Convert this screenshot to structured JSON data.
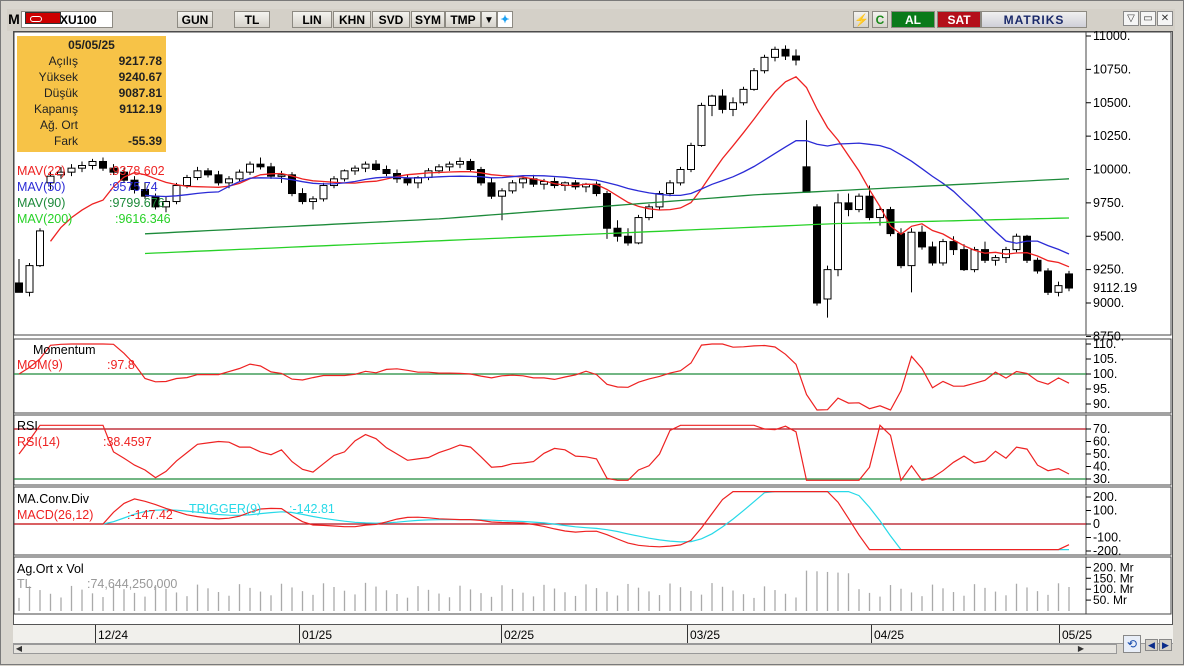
{
  "toolbar": {
    "logo": "M",
    "symbol": "XU100",
    "buttons": [
      "GUN",
      "TL",
      "LIN",
      "KHN",
      "SVD",
      "SYM",
      "TMP"
    ],
    "buy_label": "AL",
    "sell_label": "SAT",
    "brand": "MATRIKS"
  },
  "colors": {
    "buy": "#0a7a1a",
    "sell": "#b40f1a",
    "info_bg": "#f7c347",
    "ma22": "#ee2222",
    "ma50": "#2b2bd6",
    "ma90": "#1d8a3a",
    "ma200": "#27d127",
    "trigger": "#27d9e8"
  },
  "info": {
    "date": "05/05/25",
    "rows": [
      {
        "label": "Açılış",
        "value": "9217.78"
      },
      {
        "label": "Yüksek",
        "value": "9240.67"
      },
      {
        "label": "Düşük",
        "value": "9087.81"
      },
      {
        "label": "Kapanış",
        "value": "9112.19"
      },
      {
        "label": "Ağ. Ort",
        "value": ""
      },
      {
        "label": "Fark",
        "value": "-55.39"
      }
    ]
  },
  "legend": {
    "ma22": {
      "name": "MAV(22)",
      "value": ":9378.602"
    },
    "ma50": {
      "name": "MAV(50)",
      "value": ":9575.74"
    },
    "ma90": {
      "name": "MAV(90)",
      "value": ":9799.676"
    },
    "ma200": {
      "name": "MAV(200)",
      "value": ":9616.346"
    }
  },
  "panes": {
    "momentum": {
      "title": "Momentum",
      "name": "MOM(9)",
      "value": ":97.8"
    },
    "rsi": {
      "title": "RSI",
      "name": "RSI(14)",
      "value": ":38.4597"
    },
    "macd": {
      "title": "MA.Conv.Div",
      "name": "MACD(26,12)",
      "value": ":-147.42",
      "trigger_name": "TRIGGER(9)",
      "trigger_value": ":-142.81"
    },
    "volume": {
      "title": "Ag.Ort x Vol",
      "unit": "TL",
      "value": ":74,644,250,000"
    }
  },
  "axes": {
    "price_ticks": [
      "11000.",
      "10750.",
      "10500.",
      "10250.",
      "10000.",
      "9750.",
      "9500.",
      "9250.",
      "9000.",
      "8750."
    ],
    "last_price": "9112.19",
    "mom_ticks": [
      "110.",
      "105.",
      "100.",
      "95.",
      "90."
    ],
    "rsi_ticks": [
      "70.",
      "60.",
      "50.",
      "40.",
      "30."
    ],
    "macd_ticks": [
      "200.",
      "100.",
      "0",
      "-100.",
      "-200."
    ],
    "vol_ticks": [
      "200. Mr",
      "150. Mr",
      "100. Mr",
      "50. Mr"
    ]
  },
  "dates": [
    "12/24",
    "01/25",
    "02/25",
    "03/25",
    "04/25",
    "05/25"
  ],
  "chart_data": {
    "type": "candlestick",
    "symbol": "XU100",
    "ylim": [
      8750,
      11000
    ],
    "candles_approx": [
      [
        9150,
        9330,
        9100,
        9080
      ],
      [
        9080,
        9300,
        9050,
        9280
      ],
      [
        9280,
        9560,
        9270,
        9540
      ],
      [
        9900,
        9980,
        9850,
        9950
      ],
      [
        9960,
        10020,
        9930,
        9980
      ],
      [
        9980,
        10040,
        9950,
        10010
      ],
      [
        10010,
        10060,
        9980,
        10030
      ],
      [
        10030,
        10080,
        10000,
        10060
      ],
      [
        10060,
        10090,
        9990,
        10010
      ],
      [
        10010,
        10040,
        9960,
        9980
      ],
      [
        9980,
        10010,
        9900,
        9920
      ],
      [
        9920,
        9950,
        9820,
        9850
      ],
      [
        9850,
        9900,
        9780,
        9800
      ],
      [
        9800,
        9820,
        9700,
        9720
      ],
      [
        9720,
        9800,
        9680,
        9760
      ],
      [
        9760,
        9900,
        9740,
        9880
      ],
      [
        9880,
        9960,
        9860,
        9940
      ],
      [
        9940,
        10020,
        9920,
        9990
      ],
      [
        9990,
        10010,
        9940,
        9960
      ],
      [
        9960,
        9990,
        9880,
        9900
      ],
      [
        9900,
        9950,
        9860,
        9930
      ],
      [
        9930,
        10000,
        9910,
        9980
      ],
      [
        9980,
        10060,
        9960,
        10040
      ],
      [
        10040,
        10090,
        10000,
        10020
      ],
      [
        10020,
        10050,
        9930,
        9950
      ],
      [
        9950,
        9990,
        9900,
        9960
      ],
      [
        9960,
        9980,
        9800,
        9820
      ],
      [
        9820,
        9860,
        9740,
        9760
      ],
      [
        9760,
        9800,
        9700,
        9780
      ],
      [
        9780,
        9900,
        9760,
        9880
      ],
      [
        9880,
        9950,
        9860,
        9930
      ],
      [
        9930,
        10000,
        9910,
        9990
      ],
      [
        9990,
        10030,
        9960,
        10010
      ],
      [
        10010,
        10060,
        9980,
        10040
      ],
      [
        10040,
        10070,
        9990,
        10000
      ],
      [
        10000,
        10030,
        9950,
        9970
      ],
      [
        9970,
        10000,
        9900,
        9930
      ],
      [
        9930,
        9960,
        9880,
        9900
      ],
      [
        9900,
        9950,
        9860,
        9940
      ],
      [
        9940,
        10010,
        9920,
        9990
      ],
      [
        9990,
        10040,
        9970,
        10020
      ],
      [
        10020,
        10060,
        9990,
        10040
      ],
      [
        10040,
        10090,
        10010,
        10060
      ],
      [
        10060,
        10080,
        9980,
        10000
      ],
      [
        10000,
        10020,
        9880,
        9900
      ],
      [
        9900,
        9940,
        9780,
        9800
      ],
      [
        9800,
        9860,
        9620,
        9840
      ],
      [
        9840,
        9920,
        9820,
        9900
      ],
      [
        9900,
        9950,
        9860,
        9930
      ],
      [
        9930,
        9960,
        9870,
        9890
      ],
      [
        9890,
        9930,
        9850,
        9910
      ],
      [
        9910,
        9940,
        9860,
        9880
      ],
      [
        9880,
        9910,
        9840,
        9900
      ],
      [
        9900,
        9920,
        9850,
        9870
      ],
      [
        9870,
        9900,
        9830,
        9890
      ],
      [
        9890,
        9910,
        9800,
        9820
      ],
      [
        9820,
        9840,
        9480,
        9560
      ],
      [
        9560,
        9620,
        9460,
        9500
      ],
      [
        9500,
        9560,
        9430,
        9450
      ],
      [
        9450,
        9660,
        9440,
        9640
      ],
      [
        9640,
        9740,
        9620,
        9720
      ],
      [
        9720,
        9840,
        9700,
        9820
      ],
      [
        9820,
        9920,
        9800,
        9900
      ],
      [
        9900,
        10020,
        9880,
        10000
      ],
      [
        10000,
        10200,
        9980,
        10180
      ],
      [
        10180,
        10500,
        10170,
        10480
      ],
      [
        10480,
        10560,
        10400,
        10550
      ],
      [
        10550,
        10600,
        10420,
        10450
      ],
      [
        10450,
        10540,
        10400,
        10500
      ],
      [
        10500,
        10620,
        10480,
        10600
      ],
      [
        10600,
        10760,
        10590,
        10740
      ],
      [
        10740,
        10860,
        10720,
        10840
      ],
      [
        10840,
        10920,
        10810,
        10900
      ],
      [
        10900,
        10930,
        10820,
        10850
      ],
      [
        10850,
        10900,
        10780,
        10820
      ],
      [
        10020,
        10370,
        9830,
        9830
      ],
      [
        9720,
        9740,
        8980,
        9000
      ],
      [
        9030,
        9280,
        8890,
        9250
      ],
      [
        9250,
        9820,
        9200,
        9750
      ],
      [
        9750,
        9820,
        9650,
        9700
      ],
      [
        9700,
        9820,
        9680,
        9800
      ],
      [
        9800,
        9880,
        9620,
        9640
      ],
      [
        9640,
        9720,
        9580,
        9700
      ],
      [
        9700,
        9720,
        9500,
        9520
      ],
      [
        9520,
        9560,
        9260,
        9280
      ],
      [
        9280,
        9560,
        9080,
        9530
      ],
      [
        9530,
        9580,
        9400,
        9420
      ],
      [
        9420,
        9460,
        9280,
        9300
      ],
      [
        9300,
        9480,
        9280,
        9460
      ],
      [
        9460,
        9500,
        9360,
        9400
      ],
      [
        9400,
        9440,
        9240,
        9250
      ],
      [
        9250,
        9420,
        9230,
        9400
      ],
      [
        9400,
        9460,
        9300,
        9320
      ],
      [
        9320,
        9360,
        9280,
        9340
      ],
      [
        9340,
        9420,
        9300,
        9400
      ],
      [
        9400,
        9520,
        9380,
        9500
      ],
      [
        9500,
        9510,
        9300,
        9320
      ],
      [
        9320,
        9340,
        9220,
        9240
      ],
      [
        9240,
        9260,
        9060,
        9080
      ],
      [
        9080,
        9160,
        9050,
        9130
      ],
      [
        9217.78,
        9240.67,
        9087.81,
        9112.19
      ]
    ]
  }
}
